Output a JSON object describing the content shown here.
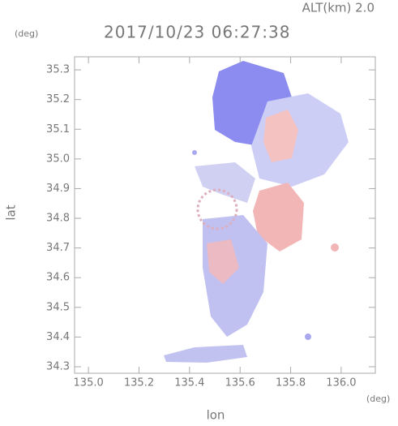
{
  "chart_data": {
    "type": "radar-map",
    "title": "2017/10/23 06:27:38",
    "altitude_label": "ALT(km) 2.0",
    "y_unit": "(deg)",
    "x_unit": "(deg)",
    "ylabel": "lat",
    "xlabel": "lon",
    "xlim": [
      134.945,
      136.135
    ],
    "ylim": [
      34.278,
      35.344
    ],
    "xticks": [
      {
        "value": 135,
        "label": "135.0"
      },
      135.2,
      135.4,
      135.6,
      135.8,
      {
        "value": 136,
        "label": "136.0"
      }
    ],
    "yticks": [
      34.3,
      34.4,
      34.5,
      34.6,
      34.7,
      34.8,
      34.9,
      {
        "value": 35,
        "label": "35.0"
      },
      35.1,
      35.2,
      35.3
    ]
  }
}
